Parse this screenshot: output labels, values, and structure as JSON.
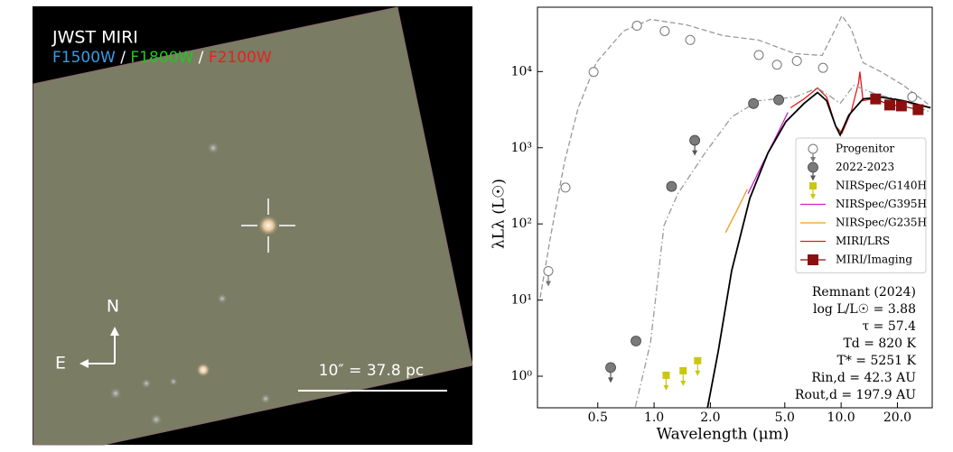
{
  "image_panel": {
    "title": "JWST MIRI",
    "filters": [
      {
        "label": "F1500W",
        "color": "#3a9be0"
      },
      {
        "label": "F1800W",
        "color": "#22c622"
      },
      {
        "label": "F2100W",
        "color": "#e82020"
      }
    ],
    "separator": "/",
    "scale_bar": "10″ = 37.8 pc",
    "compass": [
      "N",
      "E"
    ]
  },
  "chart_data": {
    "type": "line",
    "xscale": "log",
    "yscale": "log",
    "x_label": "Wavelength (μm)",
    "y_label": "λLλ (L☉)",
    "xlim": [
      0.238,
      30.7
    ],
    "ylim": [
      0.385,
      70000
    ],
    "xticks": [
      0.5,
      {
        "value": 1,
        "label": "1.0"
      },
      {
        "value": 2,
        "label": "2.0"
      },
      {
        "value": 5,
        "label": "5.0"
      },
      {
        "value": 10,
        "label": "10.0"
      },
      {
        "value": 20,
        "label": "20.0"
      }
    ],
    "yticks": [
      {
        "value": 1,
        "label": "10⁰"
      },
      {
        "value": 10,
        "label": "10¹"
      },
      {
        "value": 100,
        "label": "10²"
      },
      {
        "value": 1000,
        "label": "10³"
      },
      {
        "value": 10000,
        "label": "10⁴"
      }
    ],
    "annotation": [
      "Remnant (2024)",
      "log L/L☉ = 3.88",
      "τ = 57.4",
      "Td = 820 K",
      "T* = 5251 K",
      "Rin,d = 42.3 AU",
      "Rout,d = 197.9 AU"
    ],
    "series": [
      {
        "name": "Progenitor",
        "marker": "open-circle",
        "color": "#777777",
        "x": [
          0.272,
          0.336,
          0.475,
          0.81,
          1.14,
          1.56,
          3.63,
          4.54,
          5.8,
          8.0,
          24
        ],
        "values": [
          24,
          300,
          9900,
          40000,
          34000,
          26000,
          16500,
          12300,
          13800,
          11200,
          4650
        ],
        "upper_limits": [
          true,
          false,
          false,
          false,
          false,
          false,
          false,
          false,
          false,
          false,
          false
        ]
      },
      {
        "name": "2022-2023",
        "marker": "filled-circle",
        "color": "#7a7a7a",
        "x": [
          0.586,
          0.8,
          1.24,
          1.65,
          3.4,
          4.64
        ],
        "values": [
          1.3,
          2.9,
          310,
          1250,
          3800,
          4250
        ],
        "upper_limits": [
          true,
          false,
          false,
          true,
          false,
          false
        ]
      },
      {
        "name": "NIRSpec/G140H",
        "marker": "small-square",
        "color": "#c8c810",
        "x": [
          1.16,
          1.43,
          1.71
        ],
        "values": [
          1.03,
          1.18,
          1.6
        ],
        "upper_limits": [
          true,
          true,
          true
        ]
      },
      {
        "name": "NIRSpec/G395H",
        "line": "solid",
        "color": "#cc22cc",
        "x": [
          3.18,
          3.84,
          4.54,
          5.19
        ],
        "values": [
          249,
          648,
          1470,
          2910
        ]
      },
      {
        "name": "NIRSpec/G235H",
        "line": "solid",
        "color": "#f39a1a",
        "x": [
          2.41,
          2.75,
          3.15
        ],
        "values": [
          76.9,
          144,
          286
        ]
      },
      {
        "name": "MIRI/LRS",
        "line": "solid",
        "color": "#e41a1a",
        "x": [
          5.36,
          6.34,
          7.48,
          8.37,
          9.35,
          10.1,
          11.3,
          12.4,
          12.6,
          13.1,
          14.6
        ],
        "values": [
          3340,
          4380,
          6090,
          4630,
          1930,
          1550,
          2910,
          7160,
          9950,
          4150,
          4380
        ]
      },
      {
        "name": "MIRI/Imaging",
        "marker": "square",
        "color": "#8b0f0f",
        "x": [
          15.3,
          18.2,
          21,
          25.8
        ],
        "values": [
          4370,
          3640,
          3540,
          3160
        ]
      },
      {
        "line": "dashed",
        "color": "#999999",
        "x": [
          0.246,
          0.281,
          0.332,
          0.393,
          0.491,
          0.685,
          0.957,
          1.49,
          2.33,
          3.63,
          5.67,
          7.92,
          9.35,
          10.1,
          11.3,
          13.1,
          16.3,
          21.5,
          30.1
        ],
        "values": [
          10.8,
          72.8,
          648,
          3340,
          13100,
          34000,
          48500,
          41100,
          29700,
          25900,
          17200,
          16300,
          36900,
          54100,
          36900,
          13100,
          9950,
          6610,
          3520
        ]
      },
      {
        "line": "dashdot",
        "color": "#999999",
        "x": [
          0.766,
          0.957,
          1.13,
          1.34,
          1.87,
          2.6,
          3.63,
          5.67,
          7.48,
          8.85,
          9.89,
          11.7,
          15.4,
          21.5,
          30.1
        ],
        "values": [
          0.27,
          2.75,
          95.7,
          249,
          851,
          2540,
          4150,
          4630,
          6090,
          4630,
          3820,
          6610,
          5020,
          4150,
          2910
        ]
      },
      {
        "line": "solid",
        "color": "#000000",
        "x": [
          1.87,
          2.2,
          2.6,
          3.25,
          4.06,
          5.07,
          6.34,
          7.48,
          8.37,
          9.35,
          9.89,
          11.0,
          13.1,
          16.3,
          21.5,
          30.1
        ],
        "values": [
          0.255,
          2.09,
          24.4,
          217,
          851,
          2210,
          3820,
          5310,
          4150,
          1930,
          1470,
          2680,
          4380,
          4630,
          4150,
          3340
        ]
      }
    ]
  }
}
